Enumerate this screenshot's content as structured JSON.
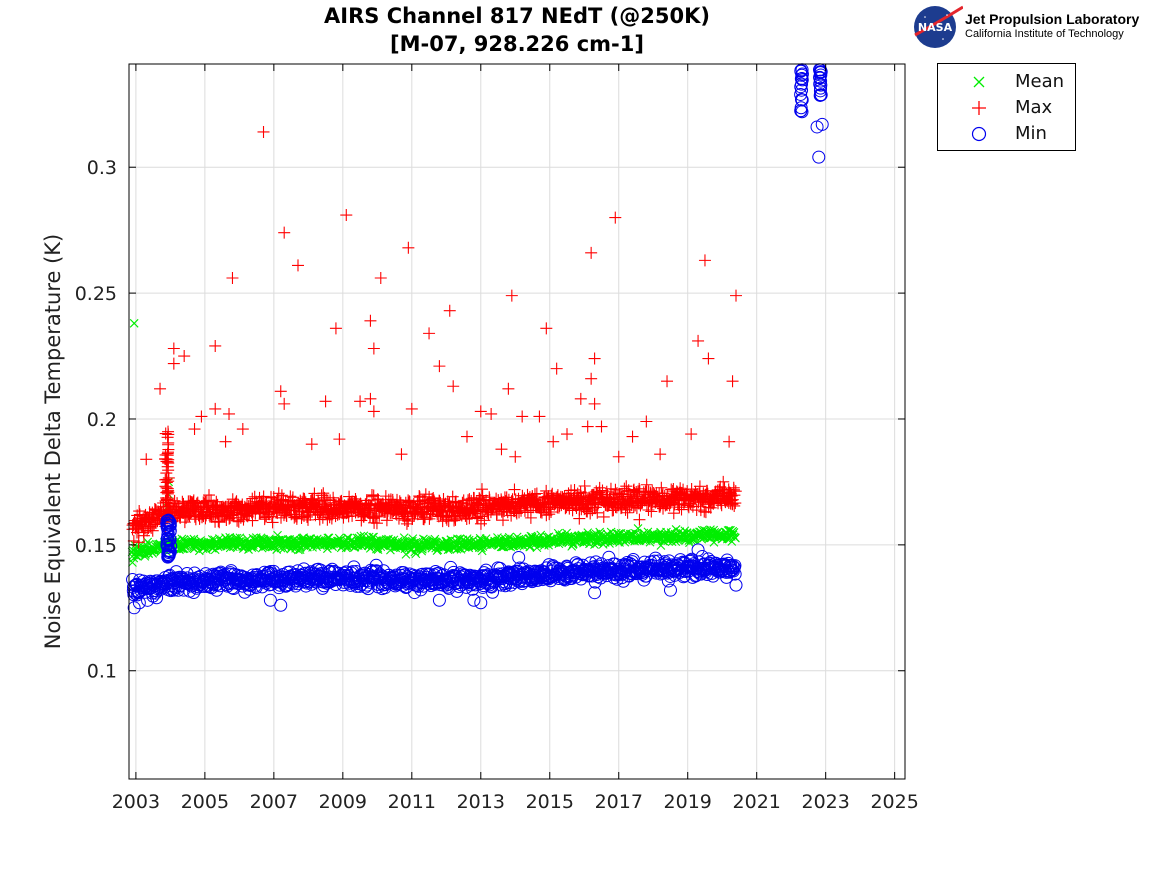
{
  "header": {
    "title_line1": "AIRS Channel 817 NEdT (@250K)",
    "title_line2": "[M-07, 928.226 cm-1]"
  },
  "logo": {
    "badge_text": "NASA",
    "line1": "Jet Propulsion Laboratory",
    "line2": "California Institute of Technology"
  },
  "chart_data": {
    "type": "scatter",
    "title": "AIRS Channel 817 NEdT (@250K) [M-07, 928.226 cm-1]",
    "xlabel": "",
    "ylabel": "Noise Equivalent Delta Temperature (K)",
    "xlim": [
      2002.8,
      2025.3
    ],
    "ylim": [
      0.057,
      0.341
    ],
    "grid": true,
    "legend_position": "outside-top-right",
    "x_ticks": [
      "2003",
      "2005",
      "2007",
      "2009",
      "2011",
      "2013",
      "2015",
      "2017",
      "2019",
      "2021",
      "2023",
      "2025"
    ],
    "x_tick_values": [
      2003,
      2005,
      2007,
      2009,
      2011,
      2013,
      2015,
      2017,
      2019,
      2021,
      2023,
      2025
    ],
    "y_ticks": [
      "0.1",
      "0.15",
      "0.2",
      "0.25",
      "0.3"
    ],
    "y_tick_values": [
      0.1,
      0.15,
      0.2,
      0.25,
      0.3
    ],
    "series": [
      {
        "name": "Mean",
        "marker": "x",
        "color": "#00ee00",
        "trend": [
          [
            2002.9,
            0.147
          ],
          [
            2004,
            0.15
          ],
          [
            2008,
            0.151
          ],
          [
            2012,
            0.15
          ],
          [
            2014,
            0.151
          ],
          [
            2017,
            0.153
          ],
          [
            2020.4,
            0.154
          ]
        ],
        "spread": 0.002,
        "x_range": [
          2002.9,
          2020.4
        ],
        "outliers": [
          [
            2002.95,
            0.238
          ],
          [
            2002.9,
            0.143
          ],
          [
            2003.95,
            0.175
          ],
          [
            2003.95,
            0.17
          ],
          [
            2003.9,
            0.165
          ],
          [
            2003.95,
            0.16
          ]
        ]
      },
      {
        "name": "Max",
        "marker": "+",
        "color": "#ff0000",
        "trend": [
          [
            2002.9,
            0.157
          ],
          [
            2004,
            0.163
          ],
          [
            2008,
            0.165
          ],
          [
            2012,
            0.164
          ],
          [
            2014,
            0.166
          ],
          [
            2017,
            0.168
          ],
          [
            2020.4,
            0.169
          ]
        ],
        "spread": 0.004,
        "x_range": [
          2002.9,
          2020.4
        ],
        "outliers": [
          [
            2006.7,
            0.314
          ],
          [
            2009.1,
            0.281
          ],
          [
            2016.9,
            0.28
          ],
          [
            2007.3,
            0.274
          ],
          [
            2010.9,
            0.268
          ],
          [
            2016.2,
            0.266
          ],
          [
            2019.5,
            0.263
          ],
          [
            2007.7,
            0.261
          ],
          [
            2005.8,
            0.256
          ],
          [
            2010.1,
            0.256
          ],
          [
            2020.4,
            0.249
          ],
          [
            2013.9,
            0.249
          ],
          [
            2012.1,
            0.243
          ],
          [
            2014.9,
            0.236
          ],
          [
            2008.8,
            0.236
          ],
          [
            2011.5,
            0.234
          ],
          [
            2019.3,
            0.231
          ],
          [
            2005.3,
            0.229
          ],
          [
            2009.8,
            0.239
          ],
          [
            2009.9,
            0.228
          ],
          [
            2004.1,
            0.228
          ],
          [
            2004.4,
            0.225
          ],
          [
            2016.3,
            0.224
          ],
          [
            2019.6,
            0.224
          ],
          [
            2004.1,
            0.222
          ],
          [
            2011.8,
            0.221
          ],
          [
            2015.2,
            0.22
          ],
          [
            2003.7,
            0.212
          ],
          [
            2007.2,
            0.211
          ],
          [
            2012.2,
            0.213
          ],
          [
            2013.8,
            0.212
          ],
          [
            2018.4,
            0.215
          ],
          [
            2020.3,
            0.215
          ],
          [
            2016.2,
            0.216
          ],
          [
            2015.9,
            0.208
          ],
          [
            2009.5,
            0.207
          ],
          [
            2008.5,
            0.207
          ],
          [
            2007.3,
            0.206
          ],
          [
            2004.9,
            0.201
          ],
          [
            2005.3,
            0.204
          ],
          [
            2005.7,
            0.202
          ],
          [
            2016.3,
            0.206
          ],
          [
            2009.8,
            0.208
          ],
          [
            2009.9,
            0.203
          ],
          [
            2011,
            0.204
          ],
          [
            2013,
            0.203
          ],
          [
            2013.3,
            0.202
          ],
          [
            2014.2,
            0.201
          ],
          [
            2014.7,
            0.201
          ],
          [
            2017.8,
            0.199
          ],
          [
            2006.1,
            0.196
          ],
          [
            2010.7,
            0.186
          ],
          [
            2012.6,
            0.193
          ],
          [
            2015.1,
            0.191
          ],
          [
            2016.1,
            0.197
          ],
          [
            2016.5,
            0.197
          ],
          [
            2017.4,
            0.193
          ],
          [
            2019.1,
            0.194
          ],
          [
            2020.2,
            0.191
          ],
          [
            2003.3,
            0.184
          ],
          [
            2004.7,
            0.196
          ],
          [
            2005.6,
            0.191
          ],
          [
            2008.1,
            0.19
          ],
          [
            2008.9,
            0.192
          ],
          [
            2014,
            0.185
          ],
          [
            2015.5,
            0.194
          ],
          [
            2017,
            0.185
          ],
          [
            2018.2,
            0.186
          ],
          [
            2017.6,
            0.16
          ],
          [
            2013.6,
            0.188
          ]
        ],
        "spike": {
          "x": 2003.9,
          "y_range": [
            0.165,
            0.195
          ]
        }
      },
      {
        "name": "Min",
        "marker": "o",
        "color": "#0000ee",
        "trend": [
          [
            2002.9,
            0.132
          ],
          [
            2004,
            0.135
          ],
          [
            2008,
            0.137
          ],
          [
            2012,
            0.136
          ],
          [
            2014,
            0.137
          ],
          [
            2017,
            0.14
          ],
          [
            2020.4,
            0.141
          ]
        ],
        "spread": 0.003,
        "x_range": [
          2002.9,
          2020.4
        ],
        "outliers": [
          [
            2002.95,
            0.125
          ],
          [
            2003.1,
            0.127
          ],
          [
            2003.6,
            0.129
          ],
          [
            2007.2,
            0.126
          ],
          [
            2006.9,
            0.128
          ],
          [
            2011.8,
            0.128
          ],
          [
            2012.8,
            0.128
          ],
          [
            2013,
            0.127
          ],
          [
            2018.5,
            0.132
          ],
          [
            2016.3,
            0.131
          ],
          [
            2020.4,
            0.134
          ],
          [
            2014.1,
            0.145
          ],
          [
            2019.3,
            0.148
          ],
          [
            2004.1,
            0.132
          ]
        ],
        "spike": {
          "x": 2003.95,
          "y_range": [
            0.145,
            0.16
          ]
        },
        "late_clusters": [
          {
            "x": 2022.3,
            "y_range": [
              0.322,
              0.339
            ]
          },
          {
            "x": 2022.85,
            "y_range": [
              0.326,
              0.34
            ]
          }
        ],
        "late_outliers": [
          [
            2022.75,
            0.316
          ],
          [
            2022.9,
            0.317
          ],
          [
            2022.8,
            0.304
          ]
        ]
      }
    ]
  }
}
